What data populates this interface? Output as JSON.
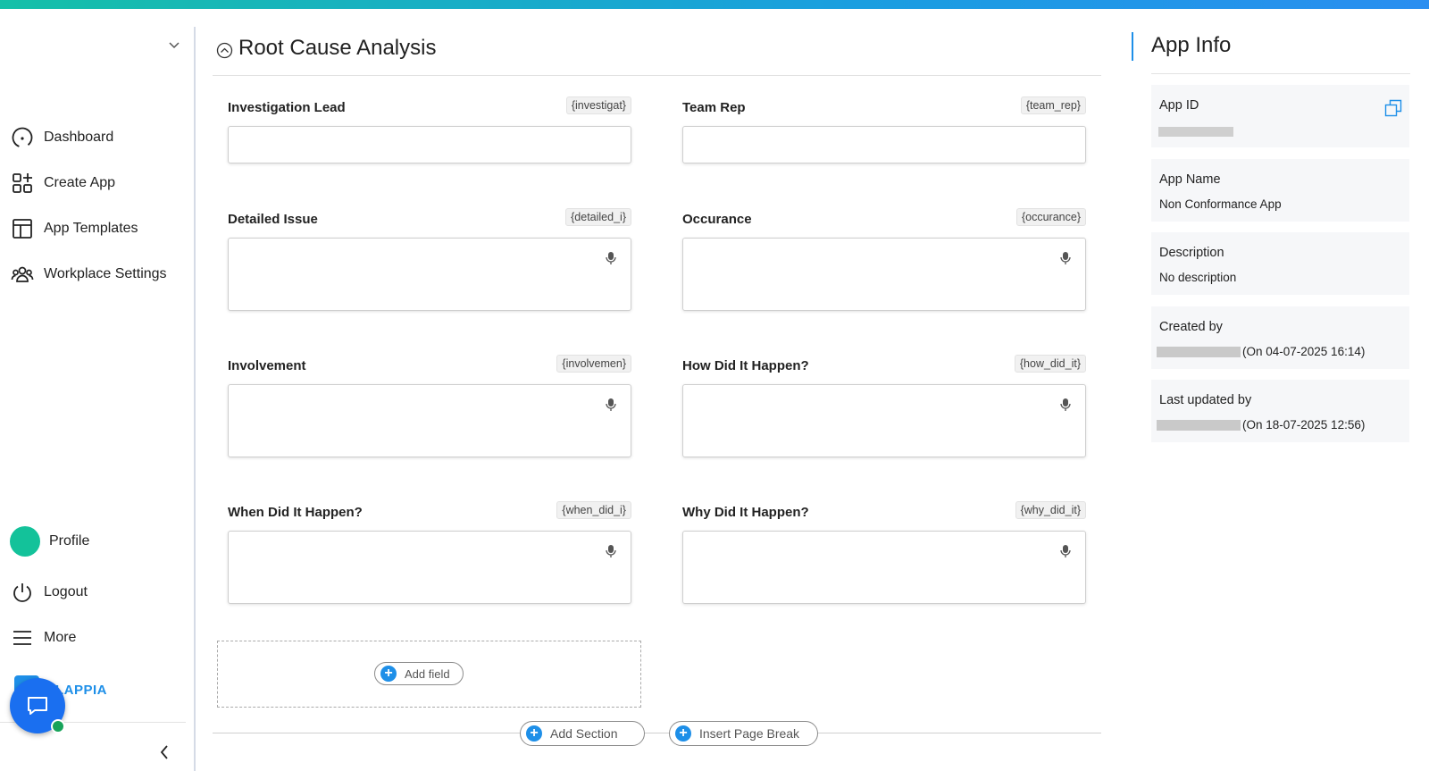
{
  "sidebar": {
    "nav": [
      "Dashboard",
      "Create App",
      "App Templates",
      "Workplace Settings"
    ],
    "profile": "Profile",
    "logout": "Logout",
    "more": "More",
    "logo": "LAPPIA"
  },
  "section": {
    "title": "Root Cause Analysis",
    "fields": [
      {
        "label": "Investigation Lead",
        "tag": "{investigat}",
        "multiline": false
      },
      {
        "label": "Team Rep",
        "tag": "{team_rep}",
        "multiline": false
      },
      {
        "label": "Detailed Issue",
        "tag": "{detailed_i}",
        "multiline": true
      },
      {
        "label": "Occurance",
        "tag": "{occurance}",
        "multiline": true
      },
      {
        "label": "Involvement",
        "tag": "{involvemen}",
        "multiline": true
      },
      {
        "label": "How Did It Happen?",
        "tag": "{how_did_it}",
        "multiline": true
      },
      {
        "label": "When Did It Happen?",
        "tag": "{when_did_i}",
        "multiline": true
      },
      {
        "label": "Why Did It Happen?",
        "tag": "{why_did_it}",
        "multiline": true
      }
    ],
    "add_field": "Add field",
    "add_section": "Add Section",
    "insert_page_break": "Insert Page Break"
  },
  "app_info": {
    "title": "App Info",
    "items": [
      {
        "label": "App ID"
      },
      {
        "label": "App Name",
        "value": "Non Conformance App"
      },
      {
        "label": "Description",
        "value": "No description"
      },
      {
        "label": "Created by",
        "value": "(On 04-07-2025 16:14)"
      },
      {
        "label": "Last updated by",
        "value": "(On 18-07-2025 12:56)"
      }
    ]
  }
}
